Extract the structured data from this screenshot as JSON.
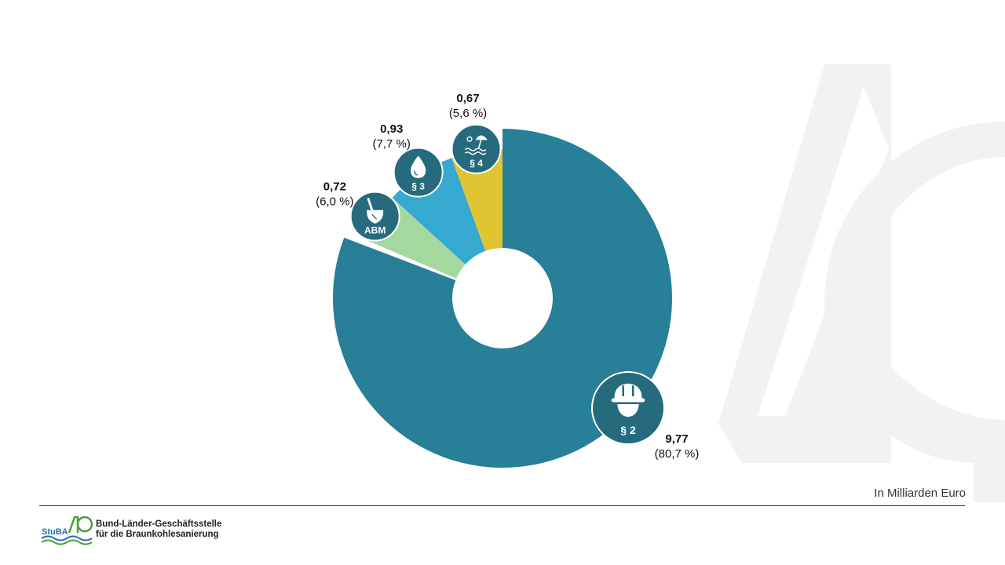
{
  "chart_data": {
    "type": "donut",
    "unit_note": "In Milliarden Euro",
    "series": [
      {
        "label": "§ 2",
        "icon": "hardhat-icon",
        "value": "9,77",
        "percent": "(80,7 %)",
        "v": 9.77,
        "color": "#277f98"
      },
      {
        "label": "ABM",
        "icon": "shovel-icon",
        "value": "0,72",
        "percent": "(6,0 %)",
        "v": 0.72,
        "color": "#a3d89f"
      },
      {
        "label": "§ 3",
        "icon": "water-drop-icon",
        "value": "0,93",
        "percent": "(7,7 %)",
        "v": 0.93,
        "color": "#35a9d0"
      },
      {
        "label": "§ 4",
        "icon": "beach-umbrella-icon",
        "value": "0,67",
        "percent": "(5,6 %)",
        "v": 0.67,
        "color": "#e0c431"
      }
    ]
  },
  "footer": {
    "logo_abbr": "StuBA",
    "logo_line1": "Bund-Länder-Geschäftsstelle",
    "logo_line2": "für die Braunkohlesanierung"
  },
  "colors": {
    "badge": "#266a7d",
    "watermark": "#f2f2f2",
    "logo_green": "#4a9e3c",
    "logo_blue": "#2a6fb0"
  }
}
